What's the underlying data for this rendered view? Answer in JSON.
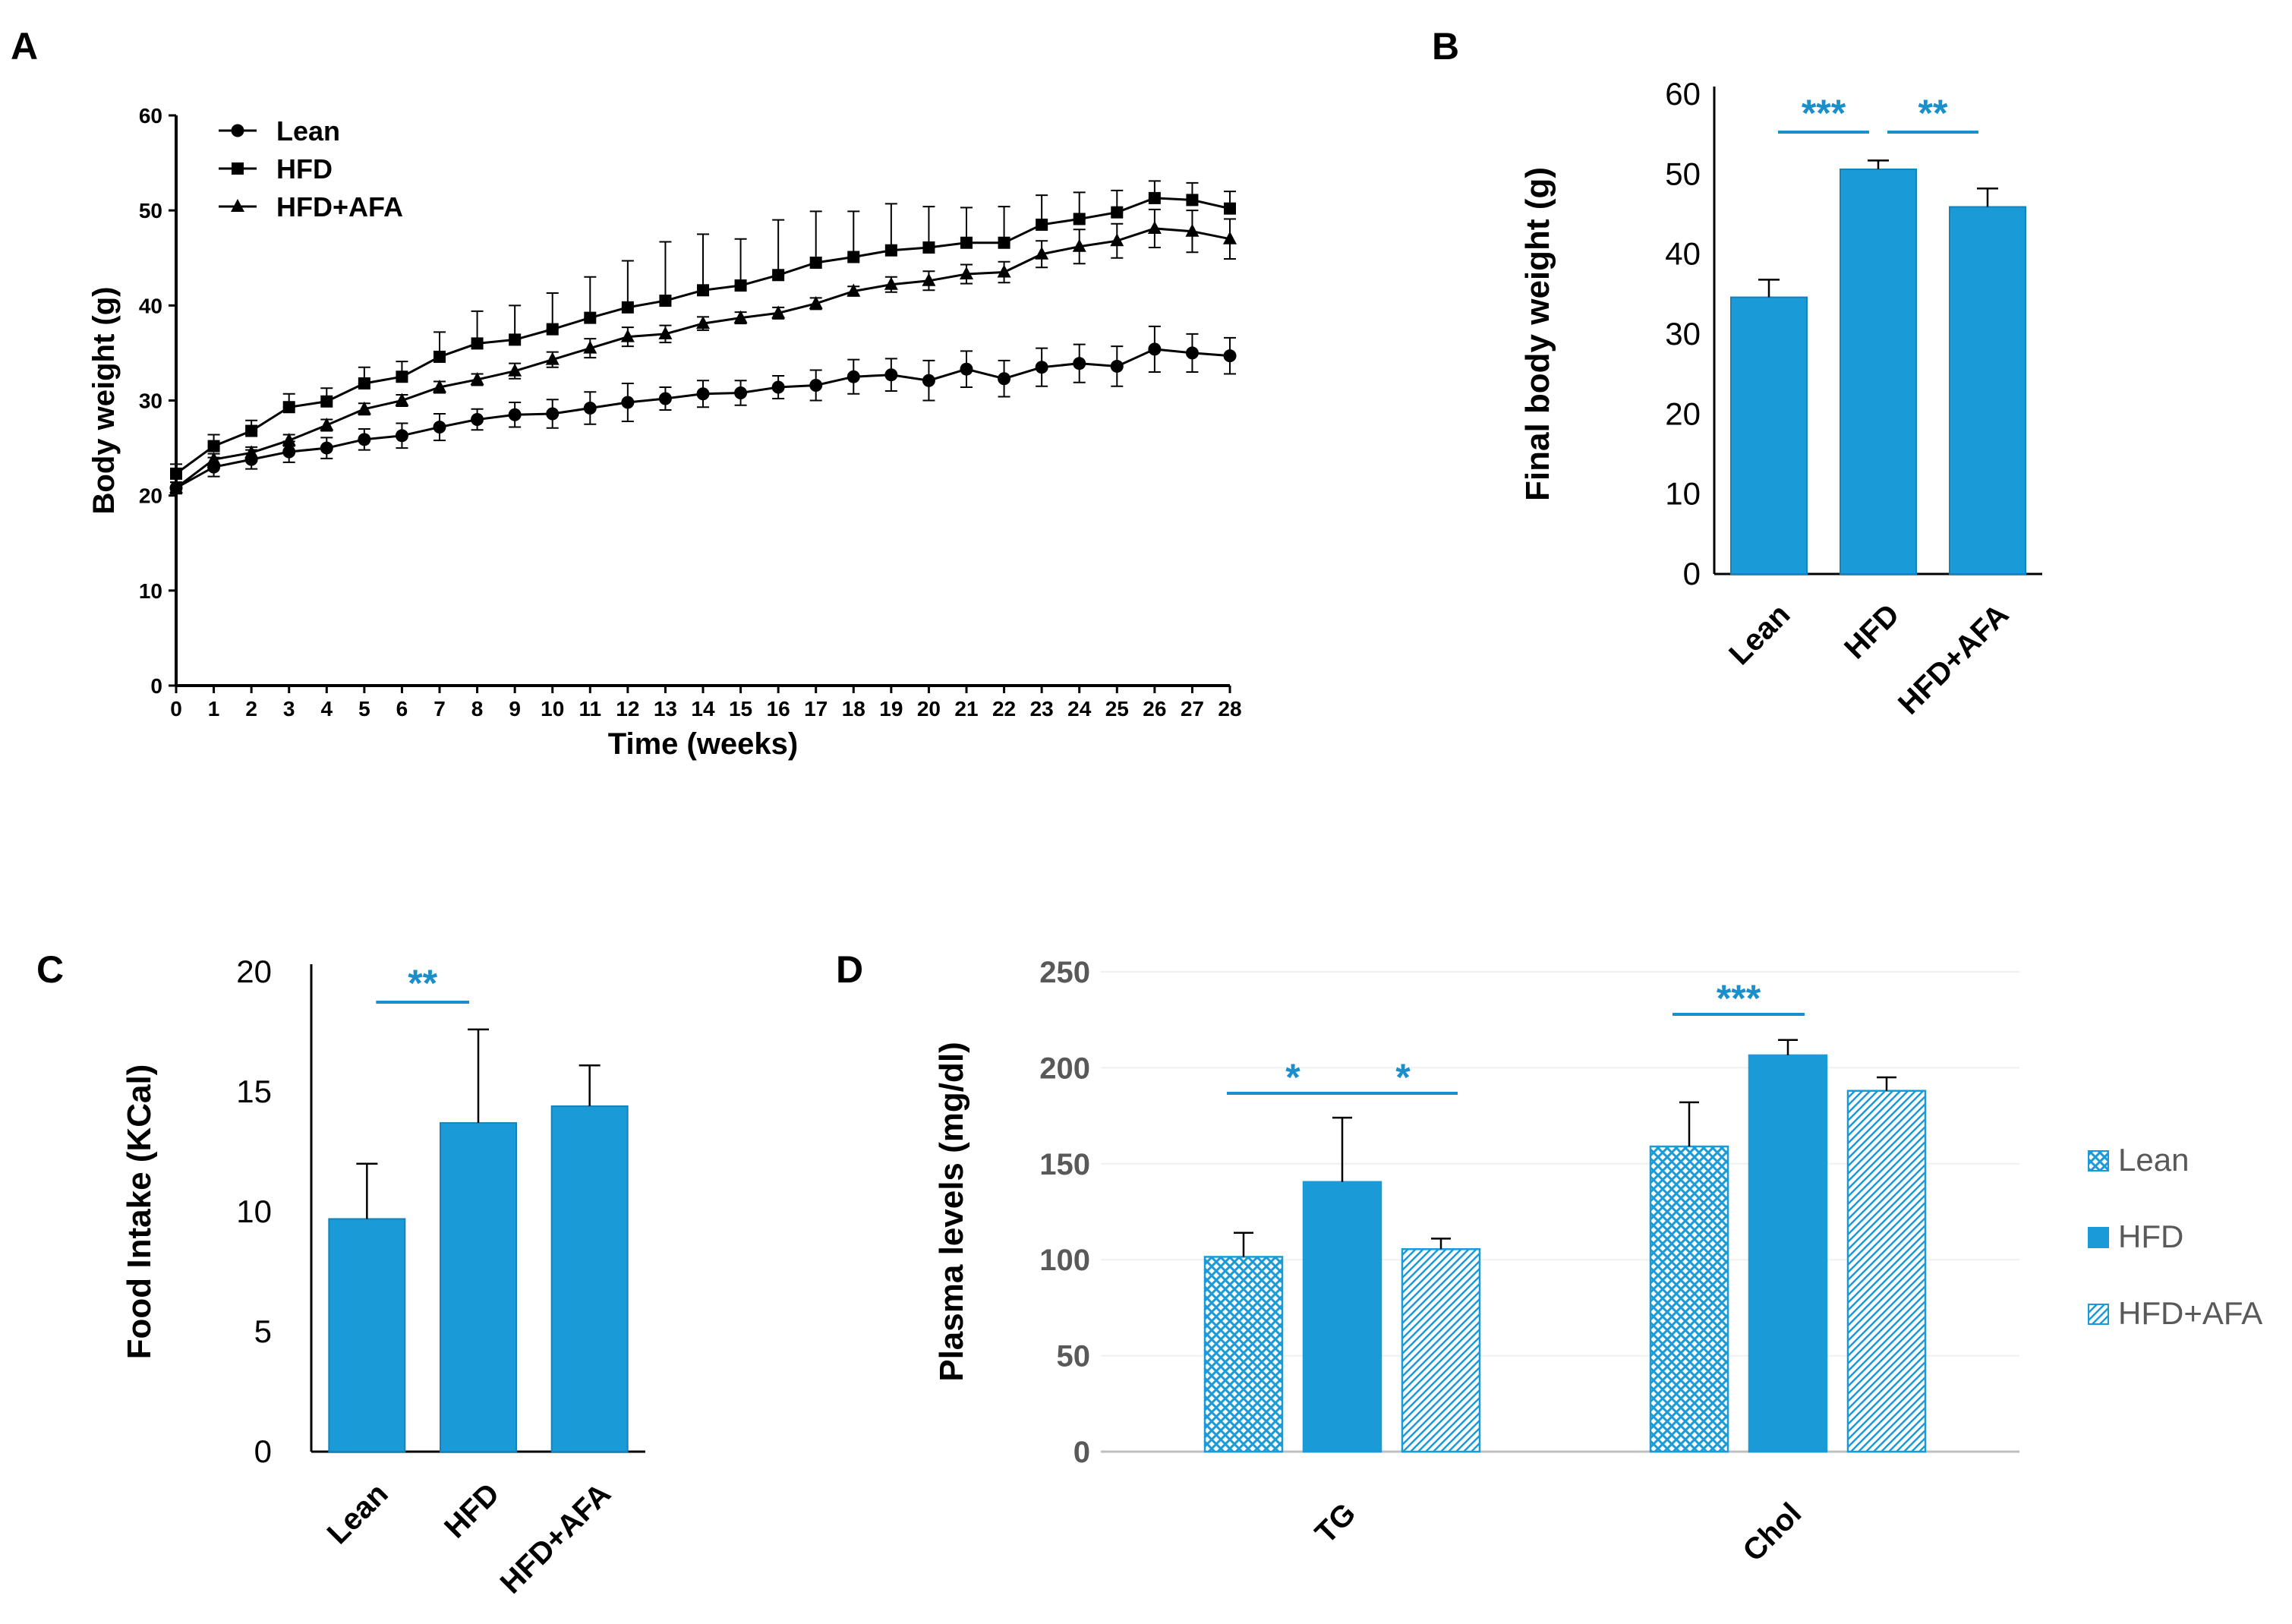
{
  "colors": {
    "bar": "#1b9ad8",
    "bar_stroke": "#1583ba",
    "sig": "#1a8fc9",
    "axis_d": "#bfbfbf",
    "text_d": "#595959"
  },
  "chart_data": [
    {
      "panel": "A",
      "type": "line",
      "title": "",
      "xlabel": "Time (weeks)",
      "ylabel": "Body weight (g)",
      "xlim": [
        0,
        28
      ],
      "ylim": [
        0,
        60
      ],
      "xticks": [
        "0",
        "1",
        "2",
        "3",
        "4",
        "5",
        "6",
        "7",
        "8",
        "9",
        "10",
        "11",
        "12",
        "13",
        "14",
        "15",
        "16",
        "17",
        "18",
        "19",
        "20",
        "21",
        "22",
        "23",
        "24",
        "25",
        "26",
        "27",
        "28"
      ],
      "yticks": [
        "0",
        "10",
        "20",
        "30",
        "40",
        "50",
        "60"
      ],
      "legend_position": "top-left",
      "x": [
        0,
        1,
        2,
        3,
        4,
        5,
        6,
        7,
        8,
        9,
        10,
        11,
        12,
        13,
        14,
        15,
        16,
        17,
        18,
        19,
        20,
        21,
        22,
        23,
        24,
        25,
        26,
        27,
        28
      ],
      "series": [
        {
          "name": "Lean",
          "marker": "circle",
          "values": [
            20.8,
            23.0,
            23.8,
            24.6,
            25.0,
            25.9,
            26.3,
            27.2,
            28.0,
            28.5,
            28.6,
            29.2,
            29.8,
            30.2,
            30.7,
            30.8,
            31.4,
            31.6,
            32.5,
            32.7,
            32.1,
            33.3,
            32.3,
            33.5,
            33.9,
            33.6,
            35.4,
            35.0,
            34.7
          ],
          "errors": [
            0.6,
            1.0,
            1.0,
            1.1,
            1.1,
            1.1,
            1.3,
            1.4,
            1.1,
            1.3,
            1.5,
            1.7,
            2.0,
            1.2,
            1.4,
            1.3,
            1.2,
            1.6,
            1.8,
            1.7,
            2.1,
            1.9,
            1.9,
            2.0,
            2.0,
            2.1,
            2.4,
            2.0,
            1.9
          ]
        },
        {
          "name": "HFD",
          "marker": "square",
          "values": [
            22.3,
            25.2,
            26.8,
            29.3,
            29.9,
            31.8,
            32.5,
            34.6,
            36.0,
            36.4,
            37.5,
            38.7,
            39.8,
            40.5,
            41.6,
            42.1,
            43.2,
            44.5,
            45.1,
            45.8,
            46.1,
            46.6,
            46.6,
            48.5,
            49.1,
            49.8,
            51.3,
            51.1,
            50.2
          ]
        },
        {
          "name": "HFD+AFA",
          "marker": "triangle",
          "values": [
            20.8,
            23.8,
            24.5,
            25.8,
            27.4,
            29.1,
            30.0,
            31.4,
            32.2,
            33.1,
            34.3,
            35.5,
            36.7,
            37.0,
            38.1,
            38.7,
            39.2,
            40.2,
            41.5,
            42.2,
            42.6,
            43.3,
            43.5,
            45.4,
            46.2,
            46.8,
            48.1,
            47.8,
            47.0
          ]
        }
      ],
      "upper_errors_hfd": [
        1.0,
        1.2,
        1.1,
        1.4,
        1.4,
        1.7,
        1.6,
        2.6,
        3.4,
        3.6,
        3.8,
        4.3,
        4.9,
        6.2,
        5.9,
        4.9,
        5.8,
        5.4,
        4.8,
        4.9,
        4.3,
        3.7,
        3.8,
        3.1,
        2.8,
        2.3,
        1.8,
        1.8,
        1.8
      ],
      "errors_afa": [
        0.6,
        0.6,
        0.6,
        0.6,
        0.6,
        0.6,
        0.6,
        0.6,
        0.6,
        0.8,
        0.8,
        1.0,
        1.0,
        0.9,
        0.7,
        0.6,
        0.6,
        0.6,
        0.5,
        0.8,
        1.0,
        1.0,
        1.1,
        1.4,
        1.8,
        1.8,
        2.0,
        2.2,
        2.1
      ]
    },
    {
      "panel": "B",
      "type": "bar",
      "title": "",
      "xlabel": "",
      "ylabel": "Final body weight (g)",
      "ylim": [
        0,
        60
      ],
      "yticks": [
        "0",
        "10",
        "20",
        "30",
        "40",
        "50",
        "60"
      ],
      "categories": [
        "Lean",
        "HFD",
        "HFD+AFA"
      ],
      "values": [
        34.6,
        50.6,
        45.9
      ],
      "errors": [
        2.2,
        1.1,
        2.3
      ],
      "significance": [
        {
          "from": 0,
          "to": 1,
          "label": "***"
        },
        {
          "from": 1,
          "to": 2,
          "label": "**"
        }
      ]
    },
    {
      "panel": "C",
      "type": "bar",
      "title": "",
      "xlabel": "",
      "ylabel": "Food Intake (KCal)",
      "ylim": [
        0,
        20
      ],
      "yticks": [
        "0",
        "5",
        "10",
        "15",
        "20"
      ],
      "categories": [
        "Lean",
        "HFD",
        "HFD+AFA"
      ],
      "values": [
        9.7,
        13.7,
        14.4
      ],
      "errors": [
        2.3,
        3.9,
        1.7
      ],
      "significance": [
        {
          "from": 0,
          "to": 1,
          "label": "**"
        }
      ]
    },
    {
      "panel": "D",
      "type": "bar",
      "title": "",
      "xlabel": "",
      "ylabel": "Plasma levels (mg/dl)",
      "ylim": [
        0,
        250
      ],
      "yticks": [
        "0",
        "50",
        "100",
        "150",
        "200",
        "250"
      ],
      "categories": [
        "TG",
        "Chol"
      ],
      "legend_position": "right",
      "series": [
        {
          "name": "Lean",
          "pattern": "crosshatch",
          "values": [
            101.5,
            159.0
          ],
          "errors": [
            12.5,
            23.0
          ]
        },
        {
          "name": "HFD",
          "pattern": "solid",
          "values": [
            140.5,
            206.5
          ],
          "errors": [
            33.5,
            8.0
          ]
        },
        {
          "name": "HFD+AFA",
          "pattern": "diagonal",
          "values": [
            105.5,
            188.0
          ],
          "errors": [
            5.5,
            7.0
          ]
        }
      ],
      "significance": [
        {
          "group": 0,
          "from": 0,
          "to": 1,
          "label": "*"
        },
        {
          "group": 0,
          "from": 1,
          "to": 2,
          "label": "*"
        },
        {
          "group": 1,
          "from": 0,
          "to": 1,
          "label": "***"
        }
      ]
    }
  ],
  "panel_labels": [
    "A",
    "B",
    "C",
    "D"
  ]
}
